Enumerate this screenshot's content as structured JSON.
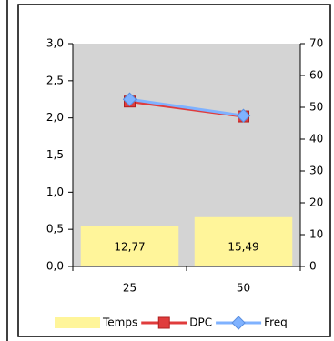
{
  "chart_data": {
    "type": "bar-line",
    "categories": [
      "25",
      "50"
    ],
    "series": [
      {
        "name": "Temps",
        "type": "bar",
        "axis": "y2",
        "color": "#fff59a",
        "values": [
          12.77,
          15.49
        ],
        "value_labels": [
          "12,77",
          "15,49"
        ]
      },
      {
        "name": "DPC",
        "type": "line",
        "marker": "square",
        "color": "#e03c3c",
        "values": [
          2.22,
          2.02
        ]
      },
      {
        "name": "Freq",
        "type": "line",
        "marker": "diamond",
        "color": "#7fb2ff",
        "values": [
          2.25,
          2.03
        ]
      }
    ],
    "ylim": [
      0,
      3
    ],
    "yticks": [
      {
        "value": 0,
        "label": "0,0"
      },
      {
        "value": 0.5,
        "label": "0,5"
      },
      {
        "value": 1,
        "label": "1,0"
      },
      {
        "value": 1.5,
        "label": "1,5"
      },
      {
        "value": 2,
        "label": "2,0"
      },
      {
        "value": 2.5,
        "label": "2,5"
      },
      {
        "value": 3,
        "label": "3,0"
      }
    ],
    "y2lim": [
      0,
      70
    ],
    "y2ticks": [
      0,
      10,
      20,
      30,
      40,
      50,
      60,
      70
    ],
    "plot_background": "#d4d4d4",
    "legend": "bottom"
  }
}
